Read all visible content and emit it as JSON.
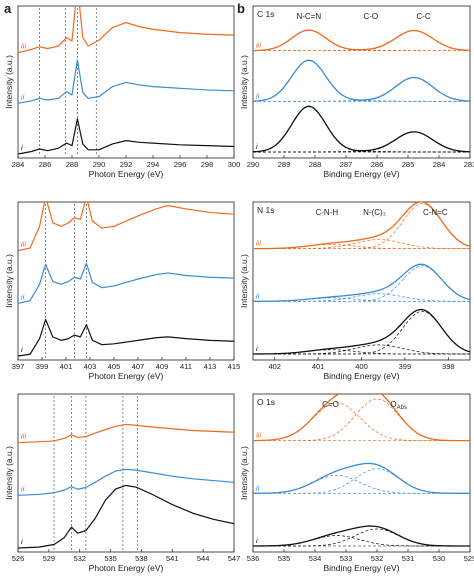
{
  "figure": {
    "panel_a_letter": "a",
    "panel_b_letter": "b"
  },
  "colors": {
    "i": "#111111",
    "ii": "#3b8bd6",
    "iii": "#ee6a1c",
    "guide": "#555555"
  },
  "chart_data": [
    {
      "id": "a1",
      "type": "line",
      "xlabel": "Photon Energy (eV)",
      "ylabel": "Intensity (a.u.)",
      "xlim": [
        284,
        300
      ],
      "xticks": [
        284,
        286,
        288,
        290,
        292,
        294,
        296,
        298,
        300
      ],
      "guides": [
        285.6,
        287.5,
        288.4,
        289.8
      ],
      "series": [
        {
          "name": "i",
          "x": [
            284,
            285,
            285.6,
            286.2,
            287,
            287.6,
            288.0,
            288.4,
            288.8,
            289.2,
            290,
            291,
            292,
            293,
            294,
            296,
            298,
            300
          ],
          "y": [
            0.0,
            0.03,
            0.06,
            0.04,
            0.07,
            0.13,
            0.1,
            0.42,
            0.12,
            0.05,
            0.05,
            0.12,
            0.16,
            0.14,
            0.13,
            0.11,
            0.1,
            0.09
          ]
        },
        {
          "name": "ii",
          "x": [
            284,
            285,
            285.6,
            286.2,
            287,
            287.6,
            288.0,
            288.4,
            288.8,
            289.2,
            290,
            291,
            292,
            293,
            294,
            296,
            298,
            300
          ],
          "y": [
            0.0,
            0.03,
            0.06,
            0.04,
            0.06,
            0.14,
            0.1,
            0.52,
            0.13,
            0.06,
            0.08,
            0.2,
            0.25,
            0.22,
            0.2,
            0.18,
            0.16,
            0.15
          ]
        },
        {
          "name": "iii",
          "x": [
            284,
            285,
            285.6,
            286.2,
            287,
            287.6,
            288.0,
            288.4,
            288.8,
            289.2,
            290,
            291,
            292,
            293,
            294,
            296,
            298,
            300
          ],
          "y": [
            0.0,
            0.04,
            0.07,
            0.05,
            0.08,
            0.18,
            0.14,
            0.8,
            0.18,
            0.08,
            0.15,
            0.3,
            0.36,
            0.31,
            0.28,
            0.24,
            0.22,
            0.21
          ]
        }
      ]
    },
    {
      "id": "b1",
      "type": "line",
      "tag": "C 1s",
      "xlabel": "Binding Energy (eV)",
      "ylabel": "Intensity (a.u.)",
      "xlim": [
        290,
        283
      ],
      "xticks": [
        290,
        289,
        288,
        287,
        286,
        285,
        284,
        283
      ],
      "annotations": [
        {
          "text": "N-C=N",
          "x": 288.2
        },
        {
          "text": "C-O",
          "x": 286.2
        },
        {
          "text": "C-C",
          "x": 284.5
        }
      ],
      "components": [
        {
          "center": 288.2,
          "width": 0.55,
          "amplitude": 1.0
        },
        {
          "center": 286.4,
          "width": 0.9,
          "amplitude": 0.12
        },
        {
          "center": 284.8,
          "width": 0.6,
          "amplitude": 0.8
        }
      ],
      "series": [
        {
          "name": "i",
          "scales": [
            1.0,
            0.1,
            0.55
          ]
        },
        {
          "name": "ii",
          "scales": [
            0.9,
            0.1,
            0.65
          ]
        },
        {
          "name": "iii",
          "scales": [
            0.45,
            0.08,
            0.55
          ]
        }
      ]
    },
    {
      "id": "a2",
      "type": "line",
      "xlabel": "Photon Energy (eV)",
      "ylabel": "Intensity (a.u.)",
      "xlim": [
        397,
        415
      ],
      "xticks": [
        397,
        399,
        401,
        403,
        405,
        407,
        409,
        411,
        413,
        415
      ],
      "guides": [
        399.3,
        401.7,
        402.7
      ],
      "series": [
        {
          "name": "i",
          "x": [
            397,
            398,
            398.8,
            399.3,
            399.9,
            400.6,
            401.2,
            401.7,
            402.2,
            402.7,
            403.2,
            404,
            405,
            406,
            407,
            408.5,
            409.5,
            411,
            413,
            415
          ],
          "y": [
            0.0,
            0.02,
            0.2,
            0.42,
            0.22,
            0.18,
            0.2,
            0.24,
            0.22,
            0.36,
            0.18,
            0.13,
            0.14,
            0.16,
            0.18,
            0.21,
            0.22,
            0.2,
            0.18,
            0.17
          ]
        },
        {
          "name": "ii",
          "x": [
            397,
            398,
            398.8,
            399.3,
            399.9,
            400.6,
            401.2,
            401.7,
            402.2,
            402.7,
            403.2,
            404,
            405,
            406,
            407,
            408.5,
            409.5,
            411,
            413,
            415
          ],
          "y": [
            0.0,
            0.03,
            0.22,
            0.45,
            0.25,
            0.22,
            0.25,
            0.3,
            0.28,
            0.46,
            0.24,
            0.18,
            0.2,
            0.24,
            0.28,
            0.33,
            0.35,
            0.32,
            0.3,
            0.29
          ]
        },
        {
          "name": "iii",
          "x": [
            397,
            398,
            398.8,
            399.3,
            399.9,
            400.6,
            401.2,
            401.7,
            402.2,
            402.7,
            403.2,
            404,
            405,
            406,
            407,
            408.5,
            409.5,
            411,
            413,
            415
          ],
          "y": [
            0.0,
            0.03,
            0.28,
            0.62,
            0.32,
            0.28,
            0.32,
            0.38,
            0.36,
            0.62,
            0.34,
            0.26,
            0.28,
            0.34,
            0.4,
            0.48,
            0.52,
            0.48,
            0.44,
            0.42
          ]
        }
      ]
    },
    {
      "id": "b2",
      "type": "line",
      "tag": "N 1s",
      "xlabel": "Binding Energy (eV)",
      "ylabel": "Intensity (a.u.)",
      "xlim": [
        402.5,
        397.5
      ],
      "xticks": [
        402,
        401,
        400,
        399,
        398
      ],
      "annotations": [
        {
          "text": "C-N-H",
          "x": 400.8
        },
        {
          "text": "N-(C)₃",
          "x": 399.7
        },
        {
          "text": "C-N=C",
          "x": 398.3
        }
      ],
      "components": [
        {
          "center": 400.7,
          "width": 0.55,
          "amplitude": 0.18
        },
        {
          "center": 399.6,
          "width": 0.55,
          "amplitude": 0.32
        },
        {
          "center": 398.6,
          "width": 0.45,
          "amplitude": 1.0
        }
      ],
      "series": [
        {
          "name": "i",
          "scales": [
            0.5,
            0.6,
            0.9
          ]
        },
        {
          "name": "ii",
          "scales": [
            0.4,
            0.5,
            0.75
          ]
        },
        {
          "name": "iii",
          "scales": [
            0.5,
            0.6,
            0.95
          ]
        }
      ]
    },
    {
      "id": "a3",
      "type": "line",
      "xlabel": "Photon Energy (eV)",
      "ylabel": "Intensity (a.u.)",
      "xlim": [
        526,
        547
      ],
      "xticks": [
        526,
        529,
        532,
        535,
        538,
        541,
        544,
        547
      ],
      "guides": [
        529.5,
        531.2,
        532.6,
        536.2,
        537.6
      ],
      "series": [
        {
          "name": "i",
          "x": [
            526,
            528,
            529.5,
            530.5,
            531.2,
            531.8,
            532.6,
            533.5,
            534.5,
            535.5,
            536.5,
            537.5,
            539,
            541,
            543,
            545,
            547
          ],
          "y": [
            0.0,
            0.01,
            0.04,
            0.12,
            0.24,
            0.17,
            0.2,
            0.34,
            0.55,
            0.68,
            0.72,
            0.7,
            0.62,
            0.5,
            0.4,
            0.33,
            0.28
          ]
        },
        {
          "name": "ii",
          "x": [
            526,
            528,
            529.5,
            530.5,
            531.2,
            531.8,
            532.6,
            533.5,
            534.5,
            535.5,
            536.5,
            537.5,
            539,
            541,
            543,
            545,
            547
          ],
          "y": [
            0.0,
            0.01,
            0.03,
            0.06,
            0.1,
            0.07,
            0.09,
            0.15,
            0.22,
            0.28,
            0.3,
            0.29,
            0.26,
            0.22,
            0.19,
            0.17,
            0.15
          ]
        },
        {
          "name": "iii",
          "x": [
            526,
            528,
            529.5,
            530.5,
            531.2,
            531.8,
            532.6,
            533.5,
            534.5,
            535.5,
            536.5,
            537.5,
            539,
            541,
            543,
            545,
            547
          ],
          "y": [
            0.0,
            0.01,
            0.02,
            0.05,
            0.09,
            0.06,
            0.07,
            0.11,
            0.15,
            0.19,
            0.21,
            0.2,
            0.18,
            0.16,
            0.14,
            0.13,
            0.12
          ]
        }
      ]
    },
    {
      "id": "b3",
      "type": "line",
      "tag": "O 1s",
      "xlabel": "Binding Energy (eV)",
      "ylabel": "Intensity (a.u.)",
      "xlim": [
        536,
        529
      ],
      "xticks": [
        536,
        535,
        534,
        533,
        532,
        531,
        530,
        529
      ],
      "annotations": [
        {
          "text": "C=O",
          "x": 533.5
        },
        {
          "text": "O",
          "x": 531.3,
          "sub": "Abs"
        }
      ],
      "components": [
        {
          "center": 533.3,
          "width": 0.75,
          "amplitude": 1.0
        },
        {
          "center": 532.0,
          "width": 0.7,
          "amplitude": 1.0
        }
      ],
      "series": [
        {
          "name": "i",
          "scales": [
            0.22,
            0.36
          ]
        },
        {
          "name": "ii",
          "scales": [
            0.38,
            0.52
          ]
        },
        {
          "name": "iii",
          "scales": [
            0.8,
            0.88
          ]
        }
      ]
    }
  ]
}
